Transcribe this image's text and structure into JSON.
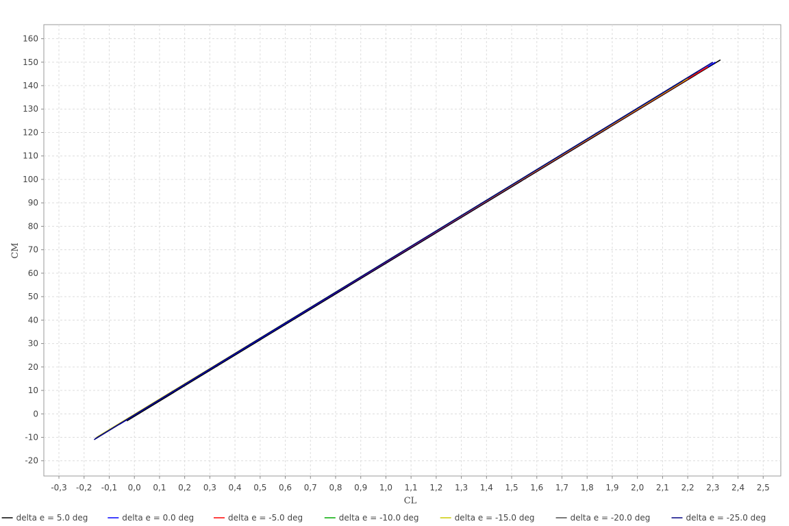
{
  "chart_data": {
    "type": "line",
    "title": "",
    "xlabel": "CL",
    "ylabel": "CM",
    "xlim": [
      -0.36,
      2.57
    ],
    "ylim": [
      -26.5,
      166
    ],
    "x_ticks": [
      -0.3,
      -0.2,
      -0.1,
      0.0,
      0.1,
      0.2,
      0.3,
      0.4,
      0.5,
      0.6,
      0.7,
      0.8,
      0.9,
      1.0,
      1.1,
      1.2,
      1.3,
      1.4,
      1.5,
      1.6,
      1.7,
      1.8,
      1.9,
      2.0,
      2.1,
      2.2,
      2.3,
      2.4,
      2.5
    ],
    "x_tick_labels": [
      "-0,3",
      "-0,2",
      "-0,1",
      "0,0",
      "0,1",
      "0,2",
      "0,3",
      "0,4",
      "0,5",
      "0,6",
      "0,7",
      "0,8",
      "0,9",
      "1,0",
      "1,1",
      "1,2",
      "1,3",
      "1,4",
      "1,5",
      "1,6",
      "1,7",
      "1,8",
      "1,9",
      "2,0",
      "2,1",
      "2,2",
      "2,3",
      "2,4",
      "2,5"
    ],
    "y_ticks": [
      -20,
      -10,
      0,
      10,
      20,
      30,
      40,
      50,
      60,
      70,
      80,
      90,
      100,
      110,
      120,
      130,
      140,
      150,
      160
    ],
    "y_tick_labels": [
      "-20",
      "-10",
      "0",
      "10",
      "20",
      "30",
      "40",
      "50",
      "60",
      "70",
      "80",
      "90",
      "100",
      "110",
      "120",
      "130",
      "140",
      "150",
      "160"
    ],
    "grid": true,
    "legend_position": "bottom",
    "series": [
      {
        "name": "delta e = 5.0 deg",
        "color": "#000000",
        "x": [
          -0.03,
          2.33
        ],
        "y": [
          -3.0,
          151.0
        ]
      },
      {
        "name": "delta e = 0.0 deg",
        "color": "#0000ff",
        "x": [
          -0.06,
          2.31
        ],
        "y": [
          -4.5,
          150.0
        ]
      },
      {
        "name": "delta e = -5.0 deg",
        "color": "#ff0000",
        "x": [
          -0.08,
          2.28
        ],
        "y": [
          -5.5,
          148.0
        ]
      },
      {
        "name": "delta e = -10.0 deg",
        "color": "#00aa00",
        "x": [
          -0.14,
          2.24
        ],
        "y": [
          -9.5,
          146.0
        ]
      },
      {
        "name": "delta e = -15.0 deg",
        "color": "#cccc00",
        "x": [
          -0.15,
          2.2
        ],
        "y": [
          -10.0,
          143.0
        ]
      },
      {
        "name": "delta e = -20.0 deg",
        "color": "#4d4d4d",
        "x": [
          -0.155,
          2.18
        ],
        "y": [
          -10.5,
          142.0
        ]
      },
      {
        "name": "delta e = -25.0 deg",
        "color": "#000080",
        "x": [
          -0.16,
          2.3
        ],
        "y": [
          -11.0,
          150.0
        ]
      }
    ]
  }
}
